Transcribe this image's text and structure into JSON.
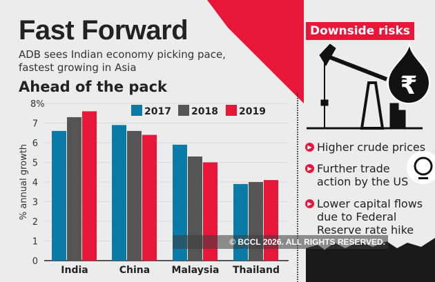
{
  "header": {
    "title": "Fast Forward",
    "subtitle": "ADB sees Indian economy picking pace, fastest growing in Asia"
  },
  "chart_data": {
    "type": "bar",
    "title": "Ahead of the pack",
    "ylabel": "% annual growth",
    "xlabel": "",
    "categories": [
      "India",
      "China",
      "Malaysia",
      "Thailand"
    ],
    "series": [
      {
        "name": "2017",
        "values": [
          6.6,
          6.9,
          5.9,
          3.9
        ],
        "color": "#0a7aa6"
      },
      {
        "name": "2018",
        "values": [
          7.3,
          6.6,
          5.3,
          4.0
        ],
        "color": "#555555"
      },
      {
        "name": "2019",
        "values": [
          7.6,
          6.4,
          5.0,
          4.1
        ],
        "color": "#e8173a"
      }
    ],
    "ylim": [
      0,
      8
    ],
    "yticks": [
      "0",
      "1",
      "2",
      "3",
      "4",
      "5",
      "6",
      "7",
      "8%"
    ],
    "grid": true,
    "legend": "top-right"
  },
  "risks": {
    "title": "Downside risks",
    "items": [
      "Higher crude prices",
      "Further trade action by the US",
      "Lower capital flows due to Federal Reserve rate hike"
    ],
    "icons": [
      "oil-pump-icon",
      "rupee-drop-icon",
      "globe-icon"
    ]
  },
  "watermark": "© BCCL 2026. ALL RIGHTS RESERVED."
}
